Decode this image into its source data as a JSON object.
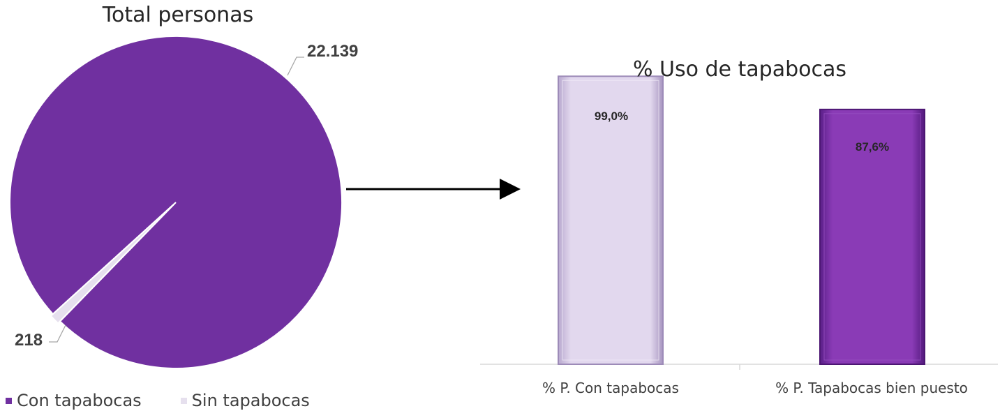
{
  "chart_data": [
    {
      "type": "pie",
      "title": "Total personas",
      "categories": [
        "Con tapabocas",
        "Sin tapabocas"
      ],
      "values": [
        22139,
        218
      ],
      "value_labels": [
        "22.139",
        "218"
      ],
      "colors": [
        "#7030a0",
        "#e6e0ee"
      ],
      "legend_position": "bottom"
    },
    {
      "type": "bar",
      "title": "% Uso de tapabocas",
      "categories": [
        "% P.  Con tapabocas",
        "% P. Tapabocas bien puesto"
      ],
      "values": [
        99.0,
        87.6
      ],
      "value_labels": [
        "99,0%",
        "87,6%"
      ],
      "colors": [
        "#d9cde7",
        "#7a2fa6"
      ],
      "ylim": [
        0,
        100
      ],
      "grid": false
    }
  ]
}
